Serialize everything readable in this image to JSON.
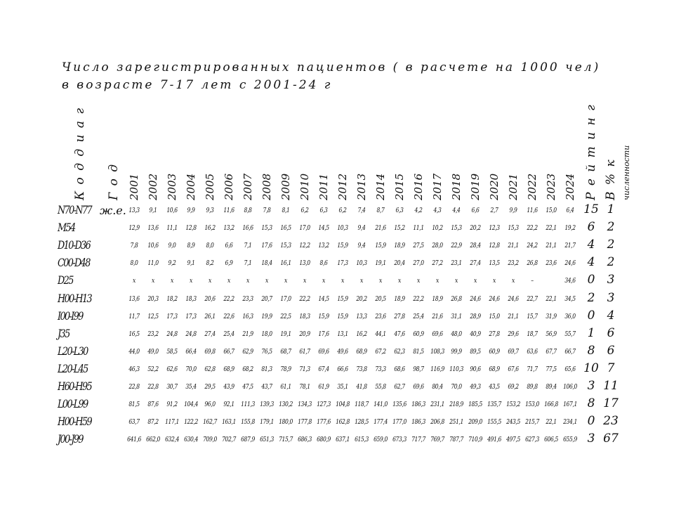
{
  "title_line1": "Число зарегистрированных пациентов ( в расчете на 1000 чел)",
  "title_line2": "в  возрасте  7-17 лет  с 2001-24 г",
  "headers": {
    "code": "К о д  д и а г",
    "year": "Г о д",
    "rating": "Р е й т и н г",
    "percent": "В % к",
    "population": "численности"
  },
  "years": [
    "2001",
    "2002",
    "2003",
    "2004",
    "2005",
    "2006",
    "2007",
    "2008",
    "2009",
    "2010",
    "2011",
    "2012",
    "2013",
    "2014",
    "2015",
    "2016",
    "2017",
    "2018",
    "2019",
    "2020",
    "2021",
    "2022",
    "2023",
    "2024"
  ],
  "rows": [
    {
      "code": "N70-N77",
      "note": "ж.е.",
      "values": [
        "13,3",
        "9,1",
        "10,6",
        "9,9",
        "9,3",
        "11,6",
        "8,8",
        "7,8",
        "8,1",
        "6,2",
        "6,3",
        "6,2",
        "7,4",
        "8,7",
        "6,3",
        "4,2",
        "4,3",
        "4,4",
        "6,6",
        "2,7",
        "9,9",
        "11,6",
        "15,0",
        "6,4"
      ],
      "rating": "15",
      "percent": "1"
    },
    {
      "code": "M54",
      "note": "",
      "values": [
        "12,9",
        "13,6",
        "11,1",
        "12,8",
        "16,2",
        "13,2",
        "16,6",
        "15,3",
        "16,5",
        "17,0",
        "14,5",
        "10,3",
        "9,4",
        "21,6",
        "15,2",
        "11,1",
        "10,2",
        "15,3",
        "20,2",
        "12,3",
        "15,3",
        "22,2",
        "22,1",
        "19,2"
      ],
      "rating": "6",
      "percent": "2"
    },
    {
      "code": "D10-D36",
      "note": "",
      "values": [
        "7,8",
        "10,6",
        "9,0",
        "8,9",
        "8,0",
        "6,6",
        "7,1",
        "17,6",
        "15,3",
        "12,2",
        "13,2",
        "15,9",
        "9,4",
        "15,9",
        "18,9",
        "27,5",
        "28,0",
        "22,9",
        "28,4",
        "12,8",
        "21,1",
        "24,2",
        "21,1",
        "21,7"
      ],
      "rating": "4",
      "percent": "2"
    },
    {
      "code": "C00-D48",
      "note": "",
      "values": [
        "8,0",
        "11,0",
        "9,2",
        "9,1",
        "8,2",
        "6,9",
        "7,1",
        "18,4",
        "16,1",
        "13,0",
        "8,6",
        "17,3",
        "10,3",
        "19,1",
        "20,4",
        "27,0",
        "27,2",
        "23,1",
        "27,4",
        "13,5",
        "23,2",
        "26,8",
        "23,6",
        "24,6"
      ],
      "rating": "4",
      "percent": "2"
    },
    {
      "code": "D25",
      "note": "",
      "values": [
        "x",
        "x",
        "x",
        "x",
        "x",
        "x",
        "x",
        "x",
        "x",
        "x",
        "x",
        "x",
        "x",
        "x",
        "x",
        "x",
        "x",
        "x",
        "x",
        "x",
        "x",
        "–",
        "",
        "34,6"
      ],
      "rating": "0",
      "percent": "3"
    },
    {
      "code": "H00-H13",
      "note": "",
      "values": [
        "13,6",
        "20,3",
        "18,2",
        "18,3",
        "20,6",
        "22,2",
        "23,3",
        "20,7",
        "17,0",
        "22,2",
        "14,5",
        "15,9",
        "20,2",
        "20,5",
        "18,9",
        "22,2",
        "18,9",
        "26,8",
        "24,6",
        "24,6",
        "24,6",
        "22,7",
        "22,1",
        "34,5"
      ],
      "rating": "2",
      "percent": "3"
    },
    {
      "code": "I00-I99",
      "note": "",
      "values": [
        "11,7",
        "12,5",
        "17,3",
        "17,3",
        "26,1",
        "22,6",
        "16,3",
        "19,9",
        "22,5",
        "18,3",
        "15,9",
        "15,9",
        "13,3",
        "23,6",
        "27,8",
        "25,4",
        "21,6",
        "31,1",
        "28,9",
        "15,0",
        "21,1",
        "15,7",
        "31,9",
        "36,0"
      ],
      "rating": "0",
      "percent": "4"
    },
    {
      "code": "J35",
      "note": "",
      "values": [
        "16,5",
        "23,2",
        "24,8",
        "24,8",
        "27,4",
        "25,4",
        "21,9",
        "18,0",
        "19,1",
        "20,9",
        "17,6",
        "13,1",
        "16,2",
        "44,1",
        "47,6",
        "60,9",
        "69,6",
        "48,0",
        "40,9",
        "27,8",
        "29,6",
        "18,7",
        "56,9",
        "55,7"
      ],
      "rating": "1",
      "percent": "6"
    },
    {
      "code": "L20-L30",
      "note": "",
      "values": [
        "44,0",
        "49,0",
        "58,5",
        "66,4",
        "69,8",
        "66,7",
        "62,9",
        "76,5",
        "68,7",
        "61,7",
        "69,6",
        "49,6",
        "68,9",
        "67,2",
        "62,3",
        "81,5",
        "108,3",
        "99,9",
        "89,5",
        "60,9",
        "69,7",
        "63,6",
        "67,7",
        "66,7"
      ],
      "rating": "8",
      "percent": "6"
    },
    {
      "code": "L20-L45",
      "note": "",
      "values": [
        "46,3",
        "52,2",
        "62,6",
        "70,0",
        "62,8",
        "68,9",
        "68,2",
        "81,3",
        "78,9",
        "71,3",
        "67,4",
        "66,6",
        "73,8",
        "73,3",
        "68,6",
        "98,7",
        "116,9",
        "110,3",
        "90,6",
        "68,9",
        "67,6",
        "71,7",
        "77,5",
        "65,6"
      ],
      "rating": "10",
      "percent": "7"
    },
    {
      "code": "H60-H95",
      "note": "",
      "values": [
        "22,8",
        "22,8",
        "30,7",
        "35,4",
        "29,5",
        "43,9",
        "47,5",
        "43,7",
        "61,1",
        "78,1",
        "61,9",
        "35,1",
        "41,8",
        "55,8",
        "62,7",
        "69,6",
        "80,4",
        "70,0",
        "49,3",
        "43,5",
        "69,2",
        "89,8",
        "89,4",
        "106,0"
      ],
      "rating": "3",
      "percent": "11"
    },
    {
      "code": "L00-L99",
      "note": "",
      "values": [
        "81,5",
        "87,6",
        "91,2",
        "104,4",
        "96,0",
        "92,1",
        "111,3",
        "139,3",
        "130,2",
        "134,3",
        "127,3",
        "104,8",
        "118,7",
        "141,0",
        "135,6",
        "186,3",
        "231,1",
        "218,9",
        "185,5",
        "135,7",
        "153,2",
        "153,0",
        "166,8",
        "167,1"
      ],
      "rating": "8",
      "percent": "17"
    },
    {
      "code": "H00-H59",
      "note": "",
      "values": [
        "63,7",
        "87,2",
        "117,1",
        "122,2",
        "162,7",
        "163,1",
        "155,8",
        "179,1",
        "180,0",
        "177,8",
        "177,6",
        "162,8",
        "128,5",
        "177,4",
        "177,0",
        "186,3",
        "206,8",
        "251,1",
        "209,0",
        "155,5",
        "243,5",
        "215,7",
        "22,1",
        "234,1"
      ],
      "rating": "0",
      "percent": "23"
    },
    {
      "code": "J00-J99",
      "note": "",
      "values": [
        "641,6",
        "662,0",
        "632,4",
        "630,4",
        "709,0",
        "702,7",
        "687,9",
        "651,3",
        "715,7",
        "686,3",
        "680,9",
        "637,1",
        "615,3",
        "659,0",
        "673,3",
        "717,7",
        "769,7",
        "787,7",
        "710,9",
        "491,6",
        "497,5",
        "627,3",
        "606,5",
        "655,9"
      ],
      "rating": "3",
      "percent": "67"
    }
  ]
}
